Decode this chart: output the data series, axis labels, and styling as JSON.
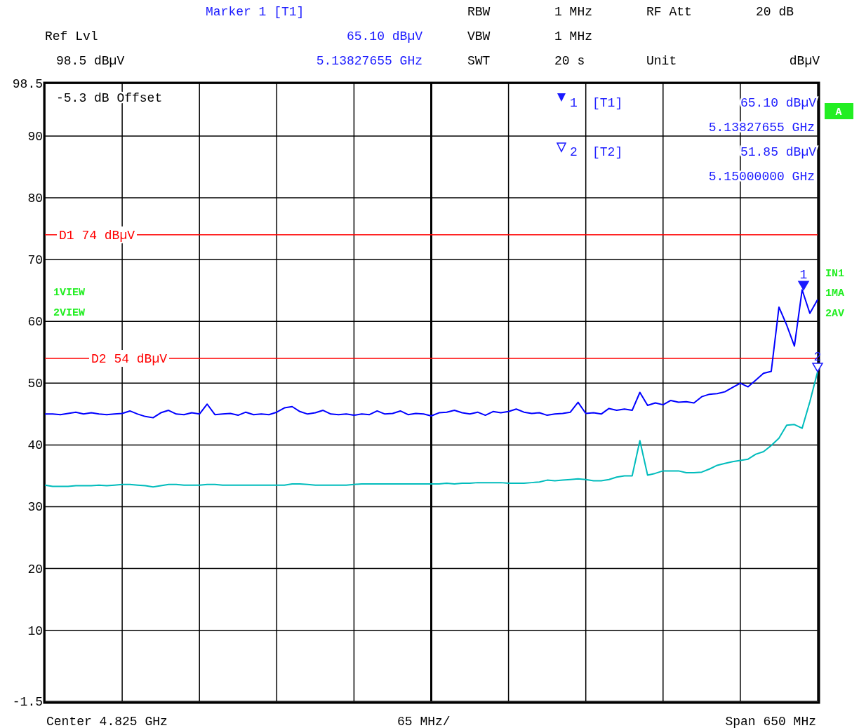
{
  "chart_data": {
    "type": "line",
    "categories": [
      null,
      null,
      null,
      null,
      null,
      null,
      null,
      null,
      null,
      null,
      null,
      null,
      null,
      null,
      null,
      null,
      null,
      null,
      null,
      null,
      null,
      null,
      null,
      null,
      null,
      null,
      null,
      null,
      null,
      null,
      null,
      null,
      null,
      null,
      null,
      null,
      null,
      null,
      null,
      null,
      null,
      null,
      null,
      null,
      null,
      null,
      null,
      null,
      null,
      null,
      null,
      null,
      null,
      null,
      null,
      null,
      null,
      null,
      null,
      null,
      null,
      null,
      null,
      null,
      null,
      null,
      null,
      null,
      null,
      null,
      null,
      null,
      null,
      null,
      null,
      null,
      null,
      null,
      null,
      null,
      null,
      null,
      null,
      null,
      null,
      null,
      null,
      null,
      null,
      null,
      null,
      null,
      null,
      null,
      null,
      null,
      null,
      null,
      null,
      null,
      null
    ],
    "ylim": [
      -1.5,
      98.5
    ],
    "yticks": [
      -1.5,
      10,
      20,
      30,
      40,
      50,
      60,
      70,
      80,
      90,
      98.5
    ],
    "tick_labels": "y",
    "grid": true,
    "marker": "none",
    "line_style": "solid",
    "series": [
      {
        "color": "#0000ff",
        "values": [
          45.0,
          45.0,
          44.9,
          45.1,
          45.3,
          45.0,
          45.2,
          45.0,
          44.9,
          45.0,
          45.1,
          45.5,
          45.0,
          44.6,
          44.4,
          45.2,
          45.6,
          45.0,
          44.9,
          45.2,
          45.0,
          46.6,
          44.9,
          45.0,
          45.1,
          44.8,
          45.3,
          44.9,
          45.0,
          44.9,
          45.3,
          46.0,
          46.2,
          45.4,
          45.0,
          45.2,
          45.6,
          45.0,
          44.9,
          45.0,
          44.8,
          45.0,
          44.9,
          45.5,
          45.0,
          45.1,
          45.5,
          44.9,
          45.1,
          45.0,
          44.7,
          45.2,
          45.3,
          45.6,
          45.2,
          45.0,
          45.3,
          44.8,
          45.4,
          45.2,
          45.4,
          45.8,
          45.3,
          45.1,
          45.2,
          44.8,
          45.0,
          45.1,
          45.3,
          46.9,
          45.1,
          45.2,
          45.0,
          45.9,
          45.6,
          45.8,
          45.6,
          48.5,
          46.4,
          46.8,
          46.5,
          47.2,
          46.9,
          47.0,
          46.8,
          47.8,
          48.2,
          48.3,
          48.6,
          49.3,
          50.0,
          49.4,
          50.5,
          51.6,
          51.9,
          62.3,
          59.4,
          56.0,
          65.1,
          61.3,
          63.5
        ]
      },
      {
        "color": "#00bcbc",
        "values": [
          33.5,
          33.3,
          33.3,
          33.3,
          33.4,
          33.4,
          33.4,
          33.5,
          33.4,
          33.5,
          33.6,
          33.6,
          33.5,
          33.4,
          33.2,
          33.4,
          33.6,
          33.6,
          33.5,
          33.5,
          33.5,
          33.6,
          33.6,
          33.5,
          33.5,
          33.5,
          33.5,
          33.5,
          33.5,
          33.5,
          33.5,
          33.5,
          33.7,
          33.7,
          33.6,
          33.5,
          33.5,
          33.5,
          33.5,
          33.5,
          33.6,
          33.7,
          33.7,
          33.7,
          33.7,
          33.7,
          33.7,
          33.7,
          33.7,
          33.7,
          33.7,
          33.7,
          33.8,
          33.7,
          33.8,
          33.8,
          33.9,
          33.9,
          33.9,
          33.9,
          33.8,
          33.8,
          33.8,
          33.9,
          34.0,
          34.3,
          34.2,
          34.3,
          34.4,
          34.5,
          34.4,
          34.2,
          34.2,
          34.4,
          34.8,
          35.0,
          35.0,
          40.7,
          35.1,
          35.4,
          35.8,
          35.8,
          35.8,
          35.5,
          35.5,
          35.6,
          36.1,
          36.7,
          37.0,
          37.3,
          37.5,
          37.7,
          38.5,
          38.9,
          39.9,
          41.1,
          43.2,
          43.3,
          42.7,
          47.0,
          51.85
        ]
      }
    ],
    "ref_lines": [
      {
        "axis": "y",
        "value": 74,
        "label": "D1 74 dBµV",
        "color": "#ff0000"
      },
      {
        "axis": "y",
        "value": 54,
        "label": "D2 54 dBµV",
        "color": "#ff0000"
      }
    ],
    "annotations": [
      "Marker 1 [T1]",
      "RBW",
      "1 MHz",
      "RF Att",
      "20 dB",
      "Ref Lvl",
      "65.10 dBµV",
      "VBW",
      "1 MHz",
      "98.5 dBµV",
      "5.13827655 GHz",
      "SWT",
      "20 s",
      "Unit",
      "dBµV",
      "-5.3 dB Offset",
      "1",
      "[T1]",
      "65.10 dBµV",
      "5.13827655 GHz",
      "2",
      "[T2]",
      "51.85 dBµV",
      "5.15000000 GHz",
      "1VIEW",
      "2VIEW",
      "IN1",
      "1MA",
      "2AV",
      "A",
      "Center 4.825 GHz",
      "65 MHz/",
      "Span 650 MHz",
      {
        "text": "1",
        "y": 65.1
      },
      {
        "text": "2",
        "y": 51.85
      }
    ]
  }
}
